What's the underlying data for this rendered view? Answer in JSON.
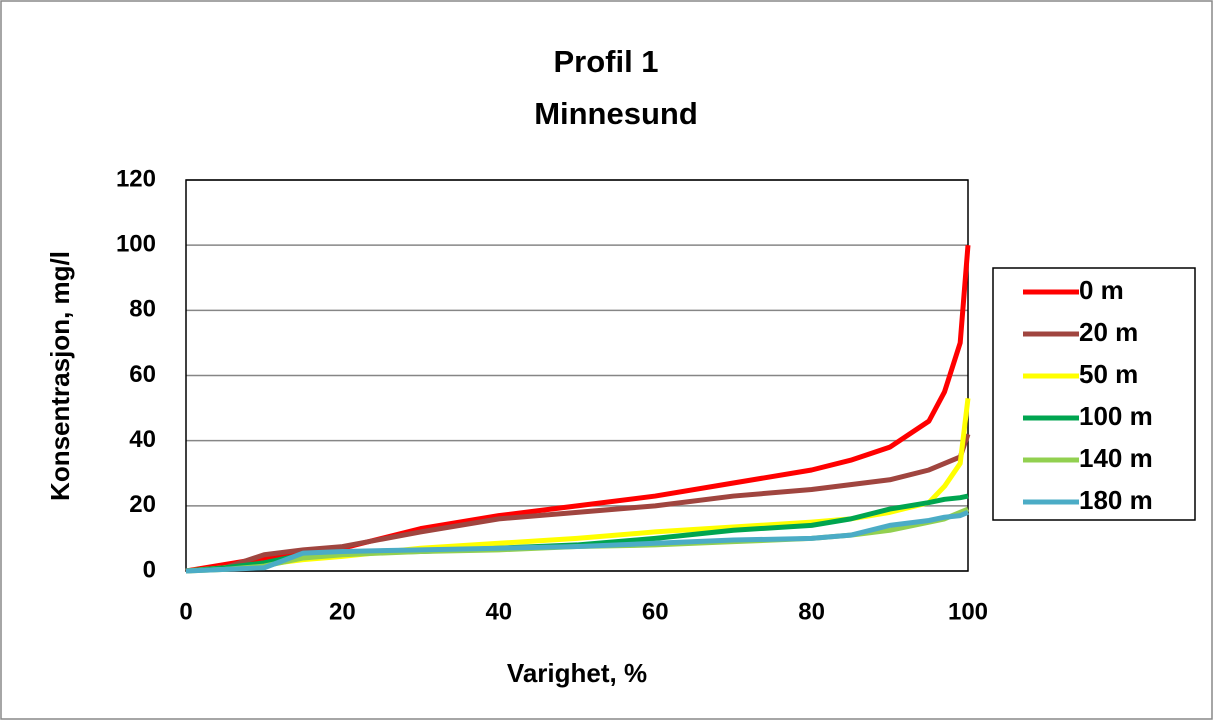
{
  "chart_data": {
    "type": "line",
    "title": "Profil 1",
    "subtitle": "Minnesund",
    "xlabel": "Varighet, %",
    "ylabel": "Konsentrasjon, mg/l",
    "x": [
      0,
      5,
      10,
      15,
      20,
      30,
      40,
      50,
      60,
      70,
      80,
      85,
      90,
      95,
      97,
      99,
      100
    ],
    "series": [
      {
        "name": "0 m",
        "color": "#ff0000",
        "values": [
          0,
          2,
          4,
          5.5,
          7,
          13,
          17,
          20,
          23,
          27,
          31,
          34,
          38,
          46,
          55,
          70,
          100
        ]
      },
      {
        "name": "20 m",
        "color": "#a0453f",
        "values": [
          0,
          1,
          5,
          6.5,
          7.5,
          12,
          16,
          18,
          20,
          23,
          25,
          26.5,
          28,
          31,
          33,
          35,
          42
        ]
      },
      {
        "name": "50 m",
        "color": "#ffff00",
        "values": [
          0,
          1,
          2,
          3.5,
          4.5,
          7,
          8.5,
          10,
          12,
          13.5,
          15,
          16,
          18,
          21,
          26,
          33,
          53
        ]
      },
      {
        "name": "100 m",
        "color": "#00a550",
        "values": [
          0,
          1,
          2.5,
          5,
          5.5,
          6,
          7,
          8,
          10,
          12.5,
          14,
          16,
          19,
          21,
          22,
          22.5,
          23
        ]
      },
      {
        "name": "140 m",
        "color": "#92d050",
        "values": [
          0,
          0.5,
          1.5,
          4,
          5,
          6,
          6.5,
          7.5,
          8,
          9,
          10,
          11,
          12.5,
          15,
          16,
          18,
          19
        ]
      },
      {
        "name": "180 m",
        "color": "#4bacc6",
        "values": [
          0,
          0.5,
          1,
          5.5,
          6,
          6.5,
          7,
          7.5,
          8.5,
          9.5,
          10,
          11,
          14,
          15.5,
          16.5,
          17,
          18
        ]
      }
    ],
    "xlim": [
      0,
      100
    ],
    "xticks": [
      0,
      20,
      40,
      60,
      80,
      100
    ],
    "ylim": [
      0,
      120
    ],
    "yticks": [
      0,
      20,
      40,
      60,
      80,
      100,
      120
    ],
    "grid": true,
    "legend": "right"
  }
}
